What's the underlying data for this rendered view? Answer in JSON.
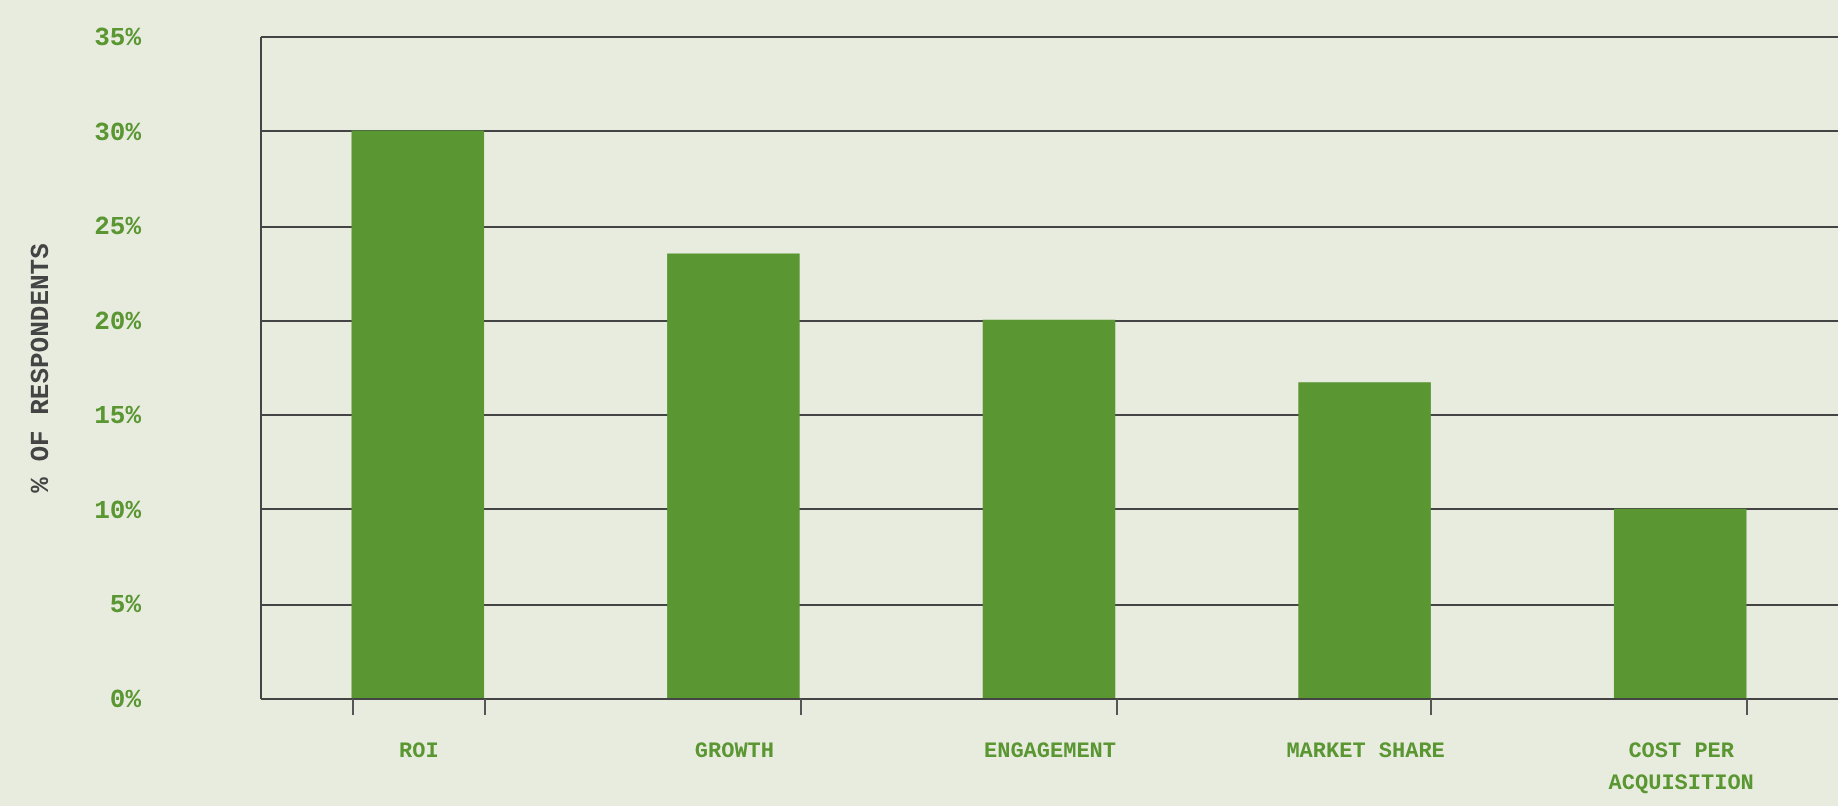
{
  "chart_data": {
    "type": "bar",
    "ylabel": "% OF RESPONDENTS",
    "categories": [
      "ROI",
      "GROWTH",
      "ENGAGEMENT",
      "MARKET SHARE",
      "COST PER ACQUISITION"
    ],
    "values": [
      30,
      23.5,
      20,
      16.7,
      10
    ],
    "color": "#5a9632",
    "ylim": [
      0,
      35
    ],
    "yticks": [
      {
        "value": 0,
        "label": "0%"
      },
      {
        "value": 5,
        "label": "5%"
      },
      {
        "value": 10,
        "label": "10%"
      },
      {
        "value": 15,
        "label": "15%"
      },
      {
        "value": 20,
        "label": "20%"
      },
      {
        "value": 25,
        "label": "25%"
      },
      {
        "value": 30,
        "label": "30%"
      },
      {
        "value": 35,
        "label": "35%"
      }
    ],
    "grid": "y"
  }
}
